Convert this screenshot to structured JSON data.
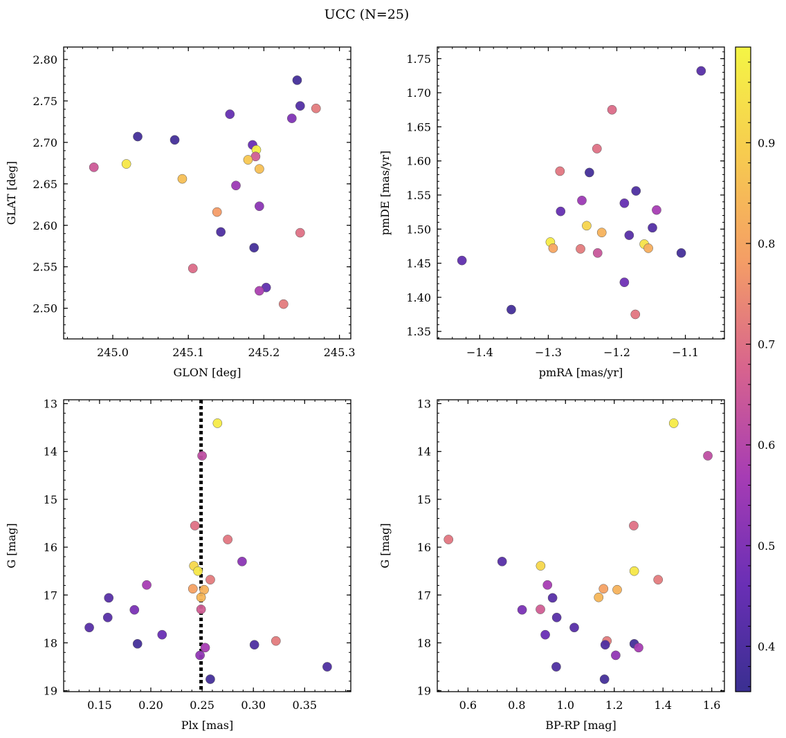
{
  "suptitle": "UCC (N=25)",
  "colormap": {
    "name": "plasma",
    "stops": [
      "#3a2f91",
      "#6a2fb5",
      "#a63cb4",
      "#d7638e",
      "#f49d66",
      "#f7cb4f",
      "#f4f545"
    ],
    "range": [
      0.355,
      0.995
    ],
    "ticks": [
      0.4,
      0.5,
      0.6,
      0.7,
      0.8,
      0.9
    ],
    "tick_labels": [
      "0.4",
      "0.5",
      "0.6",
      "0.7",
      "0.8",
      "0.9"
    ]
  },
  "chart_data": [
    {
      "type": "scatter",
      "id": "glon-glat",
      "xlabel": "GLON [deg]",
      "ylabel": "GLAT [deg]",
      "xlim": [
        244.935,
        245.315
      ],
      "ylim": [
        2.463,
        2.815
      ],
      "xticks": [
        245.0,
        245.1,
        245.2,
        245.3
      ],
      "xtick_labels": [
        "245.0",
        "245.1",
        "245.2",
        "245.3"
      ],
      "yticks": [
        2.5,
        2.55,
        2.6,
        2.65,
        2.7,
        2.75,
        2.8
      ],
      "ytick_labels": [
        "2.50",
        "2.55",
        "2.60",
        "2.65",
        "2.70",
        "2.75",
        "2.80"
      ],
      "grid": false,
      "points": [
        {
          "x": 245.033,
          "y": 2.707,
          "c": 0.38
        },
        {
          "x": 245.082,
          "y": 2.703,
          "c": 0.38
        },
        {
          "x": 245.155,
          "y": 2.734,
          "c": 0.45
        },
        {
          "x": 245.244,
          "y": 2.775,
          "c": 0.38
        },
        {
          "x": 245.248,
          "y": 2.744,
          "c": 0.41
        },
        {
          "x": 245.237,
          "y": 2.729,
          "c": 0.5
        },
        {
          "x": 245.269,
          "y": 2.741,
          "c": 0.72
        },
        {
          "x": 244.975,
          "y": 2.67,
          "c": 0.65
        },
        {
          "x": 245.018,
          "y": 2.674,
          "c": 0.96
        },
        {
          "x": 245.092,
          "y": 2.656,
          "c": 0.86
        },
        {
          "x": 245.185,
          "y": 2.697,
          "c": 0.46
        },
        {
          "x": 245.19,
          "y": 2.691,
          "c": 0.98
        },
        {
          "x": 245.189,
          "y": 2.683,
          "c": 0.66
        },
        {
          "x": 245.179,
          "y": 2.679,
          "c": 0.88
        },
        {
          "x": 245.194,
          "y": 2.668,
          "c": 0.86
        },
        {
          "x": 245.163,
          "y": 2.648,
          "c": 0.55
        },
        {
          "x": 245.138,
          "y": 2.616,
          "c": 0.78
        },
        {
          "x": 245.194,
          "y": 2.623,
          "c": 0.52
        },
        {
          "x": 245.143,
          "y": 2.592,
          "c": 0.4
        },
        {
          "x": 245.248,
          "y": 2.591,
          "c": 0.7
        },
        {
          "x": 245.187,
          "y": 2.573,
          "c": 0.38
        },
        {
          "x": 245.106,
          "y": 2.548,
          "c": 0.69
        },
        {
          "x": 245.203,
          "y": 2.525,
          "c": 0.44
        },
        {
          "x": 245.194,
          "y": 2.521,
          "c": 0.58
        },
        {
          "x": 245.226,
          "y": 2.505,
          "c": 0.72
        }
      ]
    },
    {
      "type": "scatter",
      "id": "pmra-pmde",
      "xlabel": "pmRA [mas/yr]",
      "ylabel": "pmDE [mas/yr]",
      "xlim": [
        -1.462,
        -1.043
      ],
      "ylim": [
        1.339,
        1.767
      ],
      "xticks": [
        -1.4,
        -1.3,
        -1.2,
        -1.1
      ],
      "xtick_labels": [
        "−1.4",
        "−1.3",
        "−1.2",
        "−1.1"
      ],
      "yticks": [
        1.35,
        1.4,
        1.45,
        1.5,
        1.55,
        1.6,
        1.65,
        1.7,
        1.75
      ],
      "ytick_labels": [
        "1.35",
        "1.40",
        "1.45",
        "1.50",
        "1.55",
        "1.60",
        "1.65",
        "1.70",
        "1.75"
      ],
      "grid": false,
      "points": [
        {
          "x": -1.077,
          "y": 1.732,
          "c": 0.42
        },
        {
          "x": -1.207,
          "y": 1.675,
          "c": 0.69
        },
        {
          "x": -1.229,
          "y": 1.618,
          "c": 0.7
        },
        {
          "x": -1.283,
          "y": 1.585,
          "c": 0.71
        },
        {
          "x": -1.24,
          "y": 1.583,
          "c": 0.38
        },
        {
          "x": -1.172,
          "y": 1.556,
          "c": 0.4
        },
        {
          "x": -1.251,
          "y": 1.542,
          "c": 0.55
        },
        {
          "x": -1.189,
          "y": 1.538,
          "c": 0.45
        },
        {
          "x": -1.282,
          "y": 1.526,
          "c": 0.45
        },
        {
          "x": -1.142,
          "y": 1.528,
          "c": 0.57
        },
        {
          "x": -1.244,
          "y": 1.505,
          "c": 0.91
        },
        {
          "x": -1.148,
          "y": 1.502,
          "c": 0.41
        },
        {
          "x": -1.222,
          "y": 1.495,
          "c": 0.83
        },
        {
          "x": -1.182,
          "y": 1.491,
          "c": 0.42
        },
        {
          "x": -1.297,
          "y": 1.481,
          "c": 0.97
        },
        {
          "x": -1.16,
          "y": 1.478,
          "c": 0.95
        },
        {
          "x": -1.293,
          "y": 1.472,
          "c": 0.8
        },
        {
          "x": -1.154,
          "y": 1.472,
          "c": 0.82
        },
        {
          "x": -1.253,
          "y": 1.471,
          "c": 0.72
        },
        {
          "x": -1.228,
          "y": 1.465,
          "c": 0.64
        },
        {
          "x": -1.106,
          "y": 1.465,
          "c": 0.38
        },
        {
          "x": -1.426,
          "y": 1.454,
          "c": 0.44
        },
        {
          "x": -1.189,
          "y": 1.422,
          "c": 0.47
        },
        {
          "x": -1.354,
          "y": 1.382,
          "c": 0.38
        },
        {
          "x": -1.173,
          "y": 1.375,
          "c": 0.71
        }
      ]
    },
    {
      "type": "scatter",
      "id": "plx-g",
      "xlabel": "Plx [mas]",
      "ylabel": "G [mag]",
      "xlim": [
        0.115,
        0.395
      ],
      "ylim": [
        19.02,
        12.92
      ],
      "y_inverted": true,
      "xticks": [
        0.15,
        0.2,
        0.25,
        0.3,
        0.35
      ],
      "xtick_labels": [
        "0.15",
        "0.20",
        "0.25",
        "0.30",
        "0.35"
      ],
      "yticks": [
        13,
        14,
        15,
        16,
        17,
        18,
        19
      ],
      "ytick_labels": [
        "13",
        "14",
        "15",
        "16",
        "17",
        "18",
        "19"
      ],
      "grid": false,
      "vline": {
        "x": 0.249,
        "style": "dotted",
        "color": "#000000"
      },
      "points": [
        {
          "x": 0.265,
          "y": 13.41,
          "c": 0.97
        },
        {
          "x": 0.25,
          "y": 14.09,
          "c": 0.62
        },
        {
          "x": 0.243,
          "y": 15.55,
          "c": 0.7
        },
        {
          "x": 0.275,
          "y": 15.84,
          "c": 0.71
        },
        {
          "x": 0.289,
          "y": 16.3,
          "c": 0.52
        },
        {
          "x": 0.242,
          "y": 16.39,
          "c": 0.92
        },
        {
          "x": 0.246,
          "y": 16.5,
          "c": 0.96
        },
        {
          "x": 0.258,
          "y": 16.68,
          "c": 0.72
        },
        {
          "x": 0.196,
          "y": 16.79,
          "c": 0.57
        },
        {
          "x": 0.241,
          "y": 16.87,
          "c": 0.79
        },
        {
          "x": 0.252,
          "y": 16.89,
          "c": 0.83
        },
        {
          "x": 0.249,
          "y": 17.05,
          "c": 0.84
        },
        {
          "x": 0.159,
          "y": 17.06,
          "c": 0.42
        },
        {
          "x": 0.249,
          "y": 17.3,
          "c": 0.66
        },
        {
          "x": 0.184,
          "y": 17.31,
          "c": 0.49
        },
        {
          "x": 0.158,
          "y": 17.47,
          "c": 0.42
        },
        {
          "x": 0.14,
          "y": 17.68,
          "c": 0.42
        },
        {
          "x": 0.211,
          "y": 17.83,
          "c": 0.46
        },
        {
          "x": 0.322,
          "y": 17.96,
          "c": 0.72
        },
        {
          "x": 0.187,
          "y": 18.02,
          "c": 0.38
        },
        {
          "x": 0.301,
          "y": 18.04,
          "c": 0.4
        },
        {
          "x": 0.253,
          "y": 18.1,
          "c": 0.57
        },
        {
          "x": 0.248,
          "y": 18.26,
          "c": 0.53
        },
        {
          "x": 0.372,
          "y": 18.5,
          "c": 0.4
        },
        {
          "x": 0.258,
          "y": 18.76,
          "c": 0.38
        }
      ]
    },
    {
      "type": "scatter",
      "id": "bprp-g",
      "xlabel": "BP-RP [mag]",
      "ylabel": "G [mag]",
      "xlim": [
        0.474,
        1.652
      ],
      "ylim": [
        19.02,
        12.92
      ],
      "y_inverted": true,
      "xticks": [
        0.6,
        0.8,
        1.0,
        1.2,
        1.4,
        1.6
      ],
      "xtick_labels": [
        "0.6",
        "0.8",
        "1.0",
        "1.2",
        "1.4",
        "1.6"
      ],
      "yticks": [
        13,
        14,
        15,
        16,
        17,
        18,
        19
      ],
      "ytick_labels": [
        "13",
        "14",
        "15",
        "16",
        "17",
        "18",
        "19"
      ],
      "grid": false,
      "points": [
        {
          "x": 1.444,
          "y": 13.41,
          "c": 0.97
        },
        {
          "x": 1.584,
          "y": 14.09,
          "c": 0.62
        },
        {
          "x": 1.28,
          "y": 15.55,
          "c": 0.7
        },
        {
          "x": 0.52,
          "y": 15.84,
          "c": 0.71
        },
        {
          "x": 0.74,
          "y": 16.3,
          "c": 0.42
        },
        {
          "x": 0.898,
          "y": 16.39,
          "c": 0.92
        },
        {
          "x": 1.282,
          "y": 16.5,
          "c": 0.96
        },
        {
          "x": 1.38,
          "y": 16.68,
          "c": 0.72
        },
        {
          "x": 0.926,
          "y": 16.79,
          "c": 0.57
        },
        {
          "x": 1.156,
          "y": 16.87,
          "c": 0.79
        },
        {
          "x": 1.212,
          "y": 16.89,
          "c": 0.83
        },
        {
          "x": 1.136,
          "y": 17.05,
          "c": 0.84
        },
        {
          "x": 0.947,
          "y": 17.06,
          "c": 0.42
        },
        {
          "x": 0.822,
          "y": 17.31,
          "c": 0.49
        },
        {
          "x": 0.897,
          "y": 17.3,
          "c": 0.66
        },
        {
          "x": 0.964,
          "y": 17.47,
          "c": 0.42
        },
        {
          "x": 1.036,
          "y": 17.68,
          "c": 0.42
        },
        {
          "x": 0.917,
          "y": 17.83,
          "c": 0.46
        },
        {
          "x": 1.17,
          "y": 17.96,
          "c": 0.72
        },
        {
          "x": 1.282,
          "y": 18.02,
          "c": 0.38
        },
        {
          "x": 1.163,
          "y": 18.04,
          "c": 0.4
        },
        {
          "x": 1.3,
          "y": 18.1,
          "c": 0.57
        },
        {
          "x": 1.206,
          "y": 18.26,
          "c": 0.53
        },
        {
          "x": 0.962,
          "y": 18.5,
          "c": 0.4
        },
        {
          "x": 1.16,
          "y": 18.76,
          "c": 0.38
        }
      ]
    }
  ]
}
